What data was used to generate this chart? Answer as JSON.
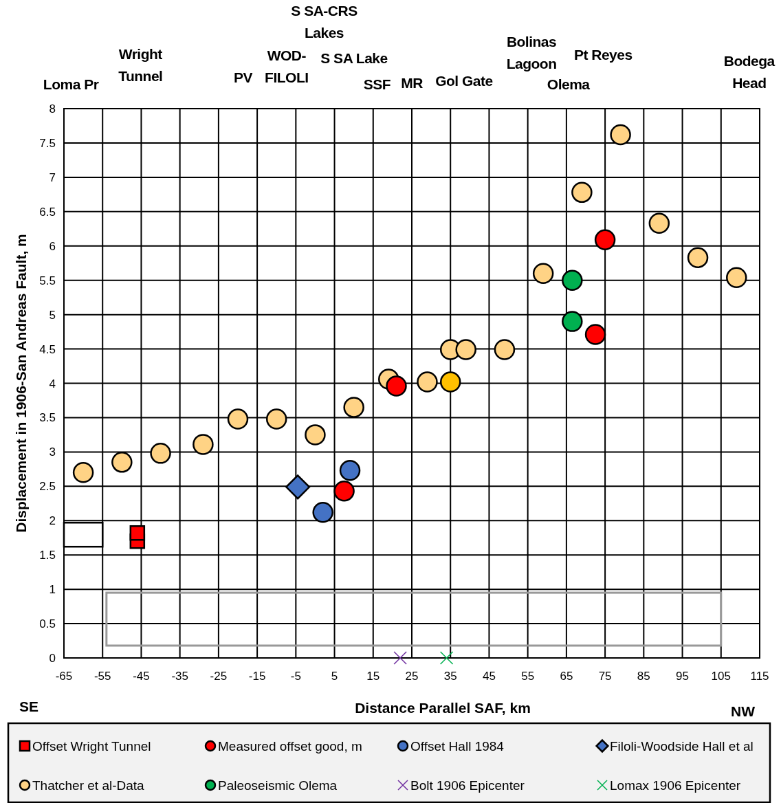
{
  "chart_data": {
    "type": "scatter",
    "xlabel": "Distance Parallel SAF, km",
    "ylabel": "Displacement in 1906-San Andreas Fault, m",
    "xlim": [
      -65,
      115
    ],
    "xticks": [
      -65,
      -55,
      -45,
      -35,
      -25,
      -15,
      -5,
      5,
      15,
      25,
      35,
      45,
      55,
      65,
      75,
      85,
      95,
      105,
      115
    ],
    "ylim": [
      0,
      8
    ],
    "yticks": [
      0,
      0.5,
      1,
      1.5,
      2,
      2.5,
      3,
      3.5,
      4,
      4.5,
      5,
      5.5,
      6,
      6.5,
      7,
      7.5,
      8
    ],
    "grid": true,
    "legend": "bottom",
    "annotations": [
      "Loma Pr",
      "Wright\nTunnel",
      "PV",
      "WOD-\nFILOLI",
      "S SA-CRS\nLakes",
      "S SA Lake",
      "SSF",
      "MR",
      "Gol Gate",
      "Bolinas\nLagoon",
      "Pt Reyes",
      "Olema",
      "Bodega\nHead",
      "SE",
      "NW"
    ],
    "series": [
      {
        "name": "Offset Wright Tunnel",
        "color": "#ff0000",
        "marker": "square",
        "x": [
          -46,
          -46
        ],
        "values": [
          1.7,
          1.82
        ]
      },
      {
        "name": "Thatcher et al-Data",
        "color": "#ffd385",
        "marker": "circle",
        "x": [
          -60,
          -50,
          -40,
          -29,
          -20,
          -10,
          0,
          10,
          19,
          29,
          35,
          39,
          49,
          59,
          69,
          79,
          89,
          99,
          109
        ],
        "values": [
          2.7,
          2.85,
          2.98,
          3.11,
          3.48,
          3.48,
          3.25,
          3.65,
          4.06,
          4.02,
          4.49,
          4.49,
          4.49,
          5.6,
          6.78,
          7.62,
          6.33,
          5.83,
          5.54
        ]
      },
      {
        "color": "#ffc000",
        "marker": "circle",
        "x": [
          35
        ],
        "values": [
          4.02
        ]
      },
      {
        "name": "Measured offset good, m",
        "color": "#ff0000",
        "marker": "circle",
        "x": [
          21,
          7.5,
          75,
          72.5
        ],
        "values": [
          3.96,
          2.43,
          6.09,
          4.71
        ]
      },
      {
        "name": "Paleoseismic Olema",
        "color": "#00b050",
        "marker": "circle",
        "x": [
          66.5,
          66.5
        ],
        "values": [
          5.5,
          4.9
        ]
      },
      {
        "name": "Offset Hall 1984",
        "color": "#4472c4",
        "marker": "circle",
        "x": [
          9,
          2
        ],
        "values": [
          2.73,
          2.12
        ]
      },
      {
        "name": "Bolt 1906 Epicenter",
        "color": "#7030a0",
        "marker": "cross",
        "x": [
          22
        ],
        "values": [
          0
        ]
      },
      {
        "name": "Filoli-Woodside Hall et al",
        "color": "#4472c4",
        "marker": "diamond",
        "x": [
          -4.5
        ],
        "values": [
          2.49
        ]
      },
      {
        "name": "Lomax 1906 Epicenter",
        "color": "#00b050",
        "marker": "cross",
        "x": [
          34
        ],
        "values": [
          0
        ]
      }
    ]
  }
}
